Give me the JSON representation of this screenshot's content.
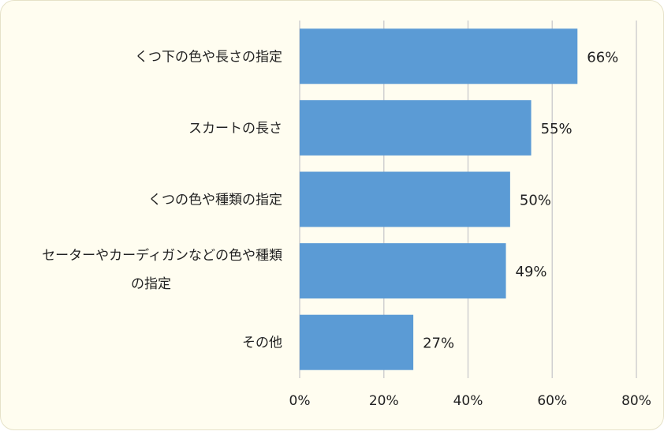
{
  "chart_data": {
    "type": "bar",
    "orientation": "horizontal",
    "categories": [
      [
        "くつ下の色や長さの指定"
      ],
      [
        "スカートの長さ"
      ],
      [
        "くつの色や種類の指定"
      ],
      [
        "セーターやカーディガンなどの色や種類",
        "の指定"
      ],
      [
        "その他"
      ]
    ],
    "values": [
      66,
      55,
      50,
      49,
      27
    ],
    "value_labels": [
      "66%",
      "55%",
      "50%",
      "49%",
      "27%"
    ],
    "xlim": [
      0,
      80
    ],
    "x_ticks": [
      0,
      20,
      40,
      60,
      80
    ],
    "x_tick_labels": [
      "0%",
      "20%",
      "40%",
      "60%",
      "80%"
    ],
    "grid": "vertical",
    "legend": "none",
    "bar_color": "#5b9bd5",
    "grid_color": "#d0d0d0",
    "background_color": "#fffdf0"
  }
}
